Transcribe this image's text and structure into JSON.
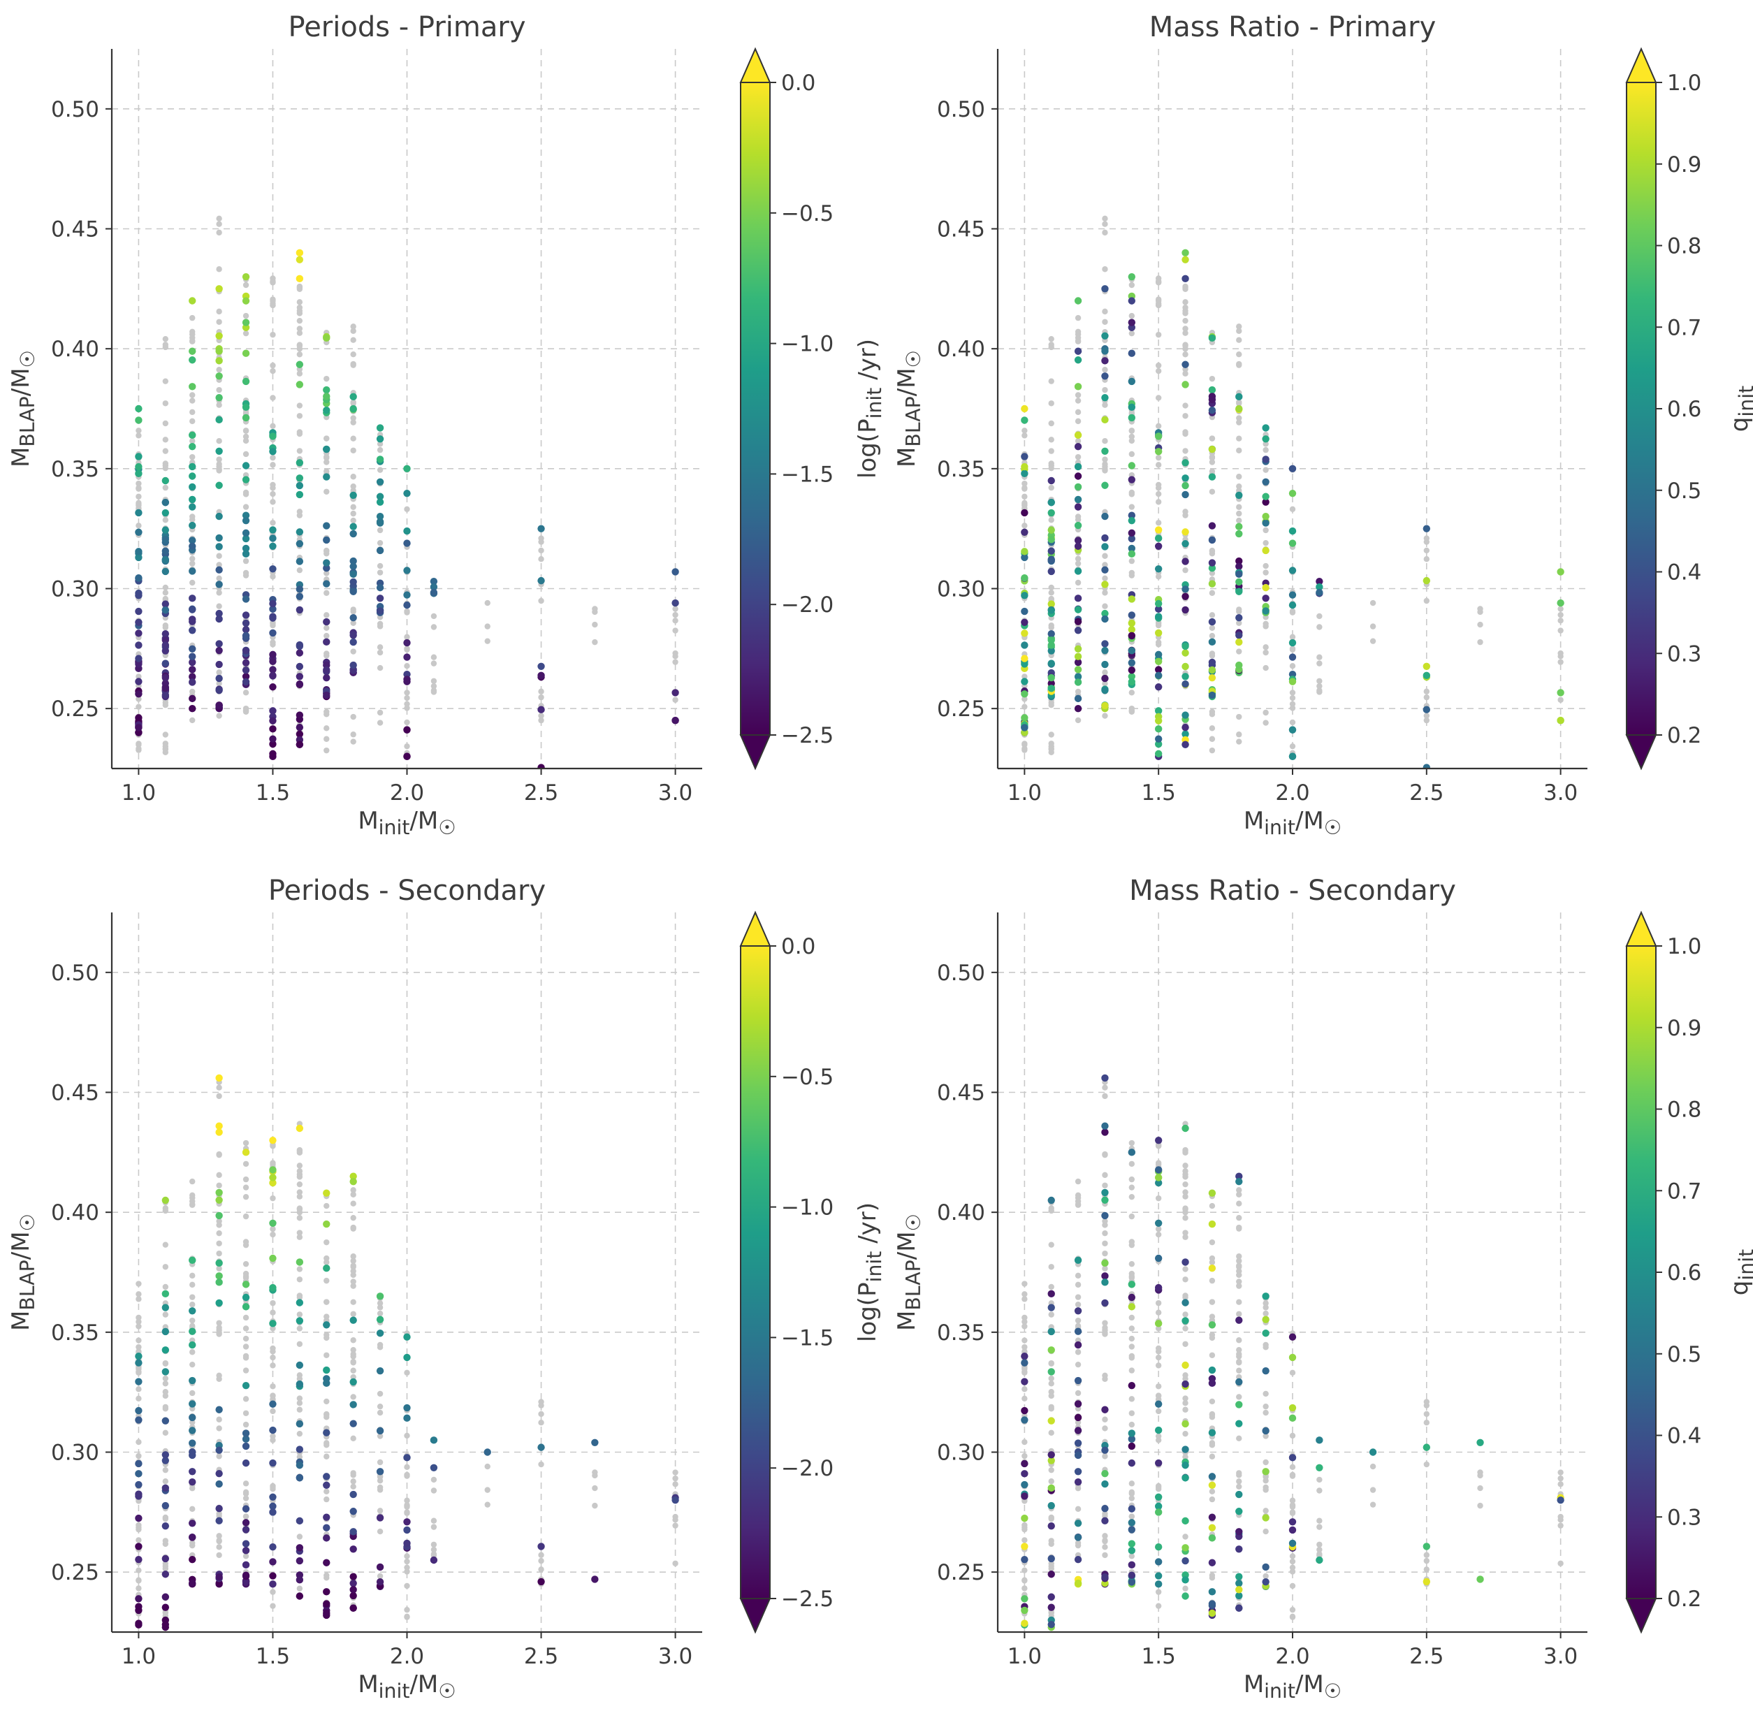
{
  "colormaps": {
    "viridis": [
      "#440154",
      "#482878",
      "#3e4989",
      "#31688e",
      "#26828e",
      "#1f9e89",
      "#35b779",
      "#6ece58",
      "#b5de2b",
      "#fde725"
    ],
    "background_point": "#c8c8c8"
  },
  "labels": {
    "x_axis": "M<sub>init</sub>/M<sub>☉</sub>",
    "y_axis": "M<sub>BLAP</sub>/M<sub>☉</sub>",
    "colorbar_period": "log(P<sub>init</sub> /yr)",
    "colorbar_q": "q<sub>init</sub>"
  },
  "chart_data": [
    {
      "id": "periods-primary",
      "type": "scatter",
      "title": "Periods - Primary",
      "xlabel": "M_init/M_sun",
      "ylabel": "M_BLAP/M_sun",
      "xlim": [
        0.9,
        3.1
      ],
      "ylim": [
        0.225,
        0.525
      ],
      "xticks": [
        "1.0",
        "1.5",
        "2.0",
        "2.5",
        "3.0"
      ],
      "yticks": [
        "0.25",
        "0.30",
        "0.35",
        "0.40",
        "0.45",
        "0.50"
      ],
      "grid": true,
      "colorbar": {
        "label": "log(P_init /yr)",
        "range": [
          -2.5,
          0.0
        ],
        "ticks": [
          "0.0",
          "−0.5",
          "−1.0",
          "−1.5",
          "−2.0",
          "−2.5"
        ],
        "extend": "both"
      },
      "background_seed": 11,
      "highlight": "primary",
      "seed": 101
    },
    {
      "id": "mass-ratio-primary",
      "type": "scatter",
      "title": "Mass Ratio - Primary",
      "xlabel": "M_init/M_sun",
      "ylabel": "M_BLAP/M_sun",
      "xlim": [
        0.9,
        3.1
      ],
      "ylim": [
        0.225,
        0.525
      ],
      "xticks": [
        "1.0",
        "1.5",
        "2.0",
        "2.5",
        "3.0"
      ],
      "yticks": [
        "0.25",
        "0.30",
        "0.35",
        "0.40",
        "0.45",
        "0.50"
      ],
      "grid": true,
      "colorbar": {
        "label": "q_init",
        "range": [
          0.2,
          1.0
        ],
        "ticks": [
          "1.0",
          "0.9",
          "0.8",
          "0.7",
          "0.6",
          "0.5",
          "0.4",
          "0.3",
          "0.2"
        ],
        "extend": "both"
      },
      "background_seed": 11,
      "highlight": "primary",
      "seed": 101
    },
    {
      "id": "periods-secondary",
      "type": "scatter",
      "title": "Periods - Secondary",
      "xlabel": "M_init/M_sun",
      "ylabel": "M_BLAP/M_sun",
      "xlim": [
        0.9,
        3.1
      ],
      "ylim": [
        0.225,
        0.525
      ],
      "xticks": [
        "1.0",
        "1.5",
        "2.0",
        "2.5",
        "3.0"
      ],
      "yticks": [
        "0.25",
        "0.30",
        "0.35",
        "0.40",
        "0.45",
        "0.50"
      ],
      "grid": true,
      "colorbar": {
        "label": "log(P_init /yr)",
        "range": [
          -2.5,
          0.0
        ],
        "ticks": [
          "0.0",
          "−0.5",
          "−1.0",
          "−1.5",
          "−2.0",
          "−2.5"
        ],
        "extend": "both"
      },
      "background_seed": 11,
      "highlight": "secondary",
      "seed": 202
    },
    {
      "id": "mass-ratio-secondary",
      "type": "scatter",
      "title": "Mass Ratio - Secondary",
      "xlabel": "M_init/M_sun",
      "ylabel": "M_BLAP/M_sun",
      "xlim": [
        0.9,
        3.1
      ],
      "ylim": [
        0.225,
        0.525
      ],
      "xticks": [
        "1.0",
        "1.5",
        "2.0",
        "2.5",
        "3.0"
      ],
      "yticks": [
        "0.25",
        "0.30",
        "0.35",
        "0.40",
        "0.45",
        "0.50"
      ],
      "grid": true,
      "colorbar": {
        "label": "q_init",
        "range": [
          0.2,
          1.0
        ],
        "ticks": [
          "1.0",
          "0.9",
          "0.8",
          "0.7",
          "0.6",
          "0.5",
          "0.4",
          "0.3",
          "0.2"
        ],
        "extend": "both"
      },
      "background_seed": 11,
      "highlight": "secondary",
      "seed": 202
    }
  ],
  "mass_grid": {
    "x": [
      1.0,
      1.1,
      1.2,
      1.3,
      1.4,
      1.5,
      1.6,
      1.7,
      1.8,
      1.9,
      2.0,
      2.1,
      2.3,
      2.5,
      2.7,
      3.0
    ],
    "primary_counts": [
      40,
      38,
      30,
      30,
      36,
      30,
      30,
      28,
      24,
      18,
      16,
      4,
      0,
      8,
      0,
      5
    ],
    "secondary_counts": [
      18,
      20,
      20,
      22,
      22,
      20,
      20,
      20,
      18,
      12,
      10,
      3,
      1,
      3,
      2,
      2
    ],
    "primary_ranges": [
      [
        0.24,
        0.375
      ],
      [
        0.255,
        0.345
      ],
      [
        0.25,
        0.42
      ],
      [
        0.25,
        0.425
      ],
      [
        0.26,
        0.43
      ],
      [
        0.23,
        0.365
      ],
      [
        0.235,
        0.44
      ],
      [
        0.255,
        0.405
      ],
      [
        0.265,
        0.38
      ],
      [
        0.29,
        0.367
      ],
      [
        0.23,
        0.35
      ],
      [
        0.298,
        0.303
      ],
      [
        0.3,
        0.3
      ],
      [
        0.225,
        0.325
      ],
      [
        0.27,
        0.3
      ],
      [
        0.245,
        0.307
      ]
    ],
    "secondary_ranges": [
      [
        0.228,
        0.34
      ],
      [
        0.227,
        0.405
      ],
      [
        0.245,
        0.38
      ],
      [
        0.245,
        0.456
      ],
      [
        0.245,
        0.425
      ],
      [
        0.245,
        0.43
      ],
      [
        0.24,
        0.435
      ],
      [
        0.232,
        0.408
      ],
      [
        0.235,
        0.415
      ],
      [
        0.244,
        0.365
      ],
      [
        0.26,
        0.348
      ],
      [
        0.255,
        0.305
      ],
      [
        0.26,
        0.3
      ],
      [
        0.246,
        0.302
      ],
      [
        0.247,
        0.304
      ],
      [
        0.28,
        0.281
      ]
    ]
  }
}
